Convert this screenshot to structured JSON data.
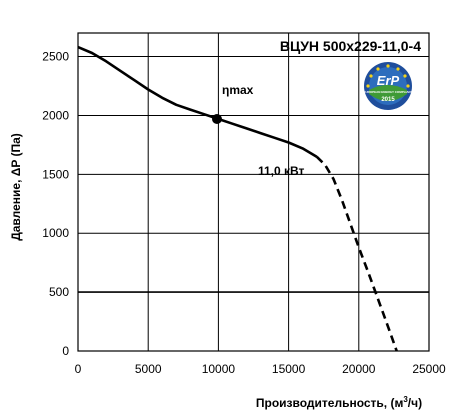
{
  "chart_data": {
    "type": "line",
    "title": "ВЦУН 500x229-11,0-4",
    "xlabel_main": "Производительность, (м",
    "xlabel_sup": "3",
    "xlabel_tail": "/ч)",
    "ylabel": "Давление, ΔP (Па)",
    "xlim": [
      0,
      25000
    ],
    "ylim": [
      0,
      2700
    ],
    "x_ticks": [
      "0",
      "5000",
      "10000",
      "15000",
      "20000",
      "25000"
    ],
    "y_ticks": [
      "0",
      "500",
      "1000",
      "1500",
      "2000",
      "2500"
    ],
    "grid": true,
    "series": [
      {
        "style": "solid",
        "points": [
          [
            0,
            2580
          ],
          [
            1000,
            2530
          ],
          [
            2000,
            2460
          ],
          [
            3000,
            2380
          ],
          [
            4000,
            2300
          ],
          [
            5000,
            2220
          ],
          [
            6000,
            2150
          ],
          [
            7000,
            2090
          ],
          [
            8000,
            2050
          ],
          [
            9000,
            2010
          ],
          [
            10000,
            1970
          ],
          [
            11000,
            1930
          ],
          [
            12000,
            1890
          ],
          [
            13000,
            1850
          ],
          [
            14000,
            1810
          ],
          [
            15000,
            1770
          ],
          [
            16000,
            1720
          ],
          [
            17000,
            1650
          ]
        ]
      },
      {
        "style": "dashed",
        "points": [
          [
            17000,
            1650
          ],
          [
            17600,
            1580
          ],
          [
            18200,
            1460
          ],
          [
            18800,
            1280
          ],
          [
            19400,
            1080
          ],
          [
            20000,
            880
          ],
          [
            20700,
            660
          ],
          [
            21400,
            430
          ],
          [
            22100,
            200
          ],
          [
            22700,
            0
          ]
        ]
      }
    ],
    "annotations": {
      "eta_label": "ηmax",
      "eta_point": [
        9900,
        1970
      ],
      "power_label": "11,0 кВт"
    },
    "badge": {
      "text_top": "ErP",
      "text_mid": "EUROPEAN ENERGY COMPLIANT",
      "text_year": "2015",
      "colors": {
        "outer": "#1f4e9c",
        "inner": "#2d6dbd",
        "green": "#3f9a36",
        "stars": "#f2d21a",
        "white": "#ffffff"
      }
    }
  }
}
